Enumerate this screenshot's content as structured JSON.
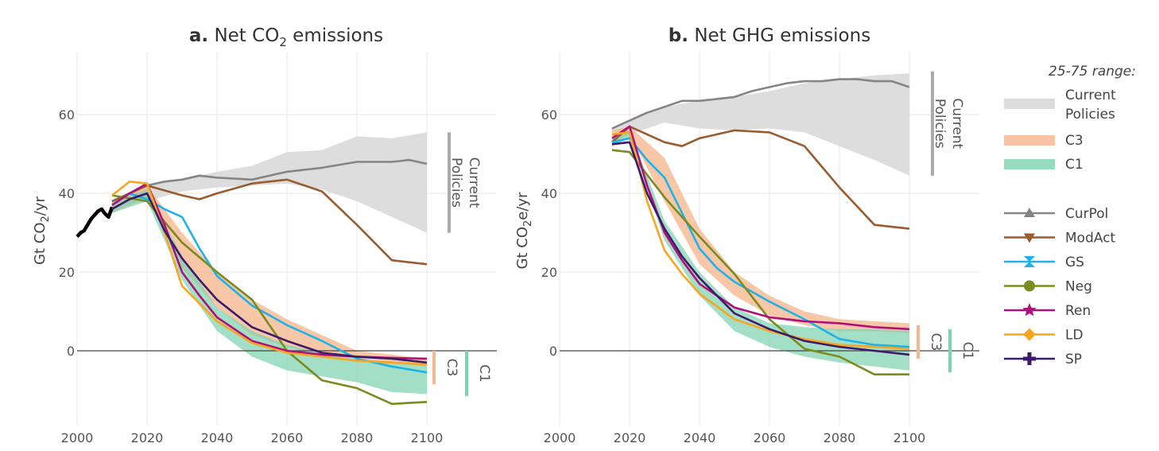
{
  "chart_data": [
    {
      "type": "line",
      "panel_letter": "a.",
      "title_pre": "Net CO",
      "title_sub": "2",
      "title_post": " emissions",
      "ylabel_pre": "Gt CO",
      "ylabel_sub": "2",
      "ylabel_post": "/yr",
      "xlim": [
        2000,
        2120
      ],
      "ylim": [
        -19,
        76
      ],
      "xticks": [
        2000,
        2020,
        2040,
        2060,
        2080,
        2100
      ],
      "yticks": [
        0,
        20,
        40,
        60
      ],
      "historical": {
        "x": [
          2000,
          2001,
          2002,
          2003,
          2004,
          2005,
          2006,
          2007,
          2008,
          2009,
          2010
        ],
        "y": [
          29,
          30,
          30.5,
          32,
          33.5,
          34.5,
          35.5,
          36,
          34.8,
          34,
          36.5
        ]
      },
      "ranges": [
        {
          "name": "Current Policies",
          "x": [
            2010,
            2020,
            2030,
            2040,
            2050,
            2060,
            2070,
            2080,
            2090,
            2100
          ],
          "low": [
            37,
            38,
            40.5,
            41.5,
            42,
            42.5,
            41,
            38,
            34,
            30
          ],
          "high": [
            37.5,
            42,
            43.5,
            45.5,
            47,
            50.5,
            51,
            54.5,
            54,
            55.5
          ]
        },
        {
          "name": "C3",
          "x": [
            2010,
            2020,
            2030,
            2040,
            2050,
            2060,
            2070,
            2080,
            2090,
            2100
          ],
          "low": [
            35,
            39,
            21,
            11,
            4,
            1,
            -1,
            -2,
            -3,
            -4
          ],
          "high": [
            38,
            42,
            30,
            20,
            13,
            8,
            4,
            0,
            -1,
            -2
          ]
        },
        {
          "name": "C1",
          "x": [
            2010,
            2020,
            2030,
            2040,
            2050,
            2060,
            2070,
            2080,
            2090,
            2100
          ],
          "low": [
            35,
            38,
            18,
            5,
            -1.5,
            -5,
            -6.5,
            -8,
            -10.5,
            -11
          ],
          "high": [
            38,
            41,
            24,
            11,
            5,
            1.5,
            -0.5,
            -2,
            -3,
            -3.5
          ]
        }
      ],
      "series": [
        {
          "name": "CurPol",
          "x": [
            2010,
            2020,
            2025,
            2030,
            2035,
            2040,
            2050,
            2060,
            2070,
            2080,
            2090,
            2095,
            2100
          ],
          "y": [
            38,
            42,
            43,
            43.5,
            44.5,
            44,
            43.5,
            45.5,
            46.5,
            48,
            48,
            48.5,
            47.5
          ]
        },
        {
          "name": "ModAct",
          "x": [
            2010,
            2020,
            2030,
            2035,
            2040,
            2050,
            2060,
            2070,
            2080,
            2090,
            2100
          ],
          "y": [
            38,
            42,
            39.5,
            38.5,
            40,
            42.5,
            43.5,
            40.5,
            32,
            23,
            22
          ]
        },
        {
          "name": "GS",
          "x": [
            2010,
            2015,
            2020,
            2025,
            2030,
            2035,
            2040,
            2050,
            2060,
            2070,
            2080,
            2090,
            2100
          ],
          "y": [
            37,
            40,
            38.5,
            36,
            34,
            26,
            19,
            11.5,
            6.5,
            2.5,
            -2,
            -4,
            -5.5
          ]
        },
        {
          "name": "Neg",
          "x": [
            2010,
            2020,
            2030,
            2040,
            2050,
            2060,
            2070,
            2080,
            2090,
            2100
          ],
          "y": [
            39.5,
            38,
            27.5,
            20,
            13,
            0,
            -7.5,
            -9.5,
            -13.5,
            -13
          ]
        },
        {
          "name": "Ren",
          "x": [
            2010,
            2015,
            2020,
            2025,
            2030,
            2035,
            2040,
            2050,
            2060,
            2070,
            2080,
            2090,
            2100
          ],
          "y": [
            37,
            40,
            42.5,
            32,
            20,
            14,
            8.5,
            2.5,
            0,
            -1,
            -1.5,
            -1.8,
            -2
          ]
        },
        {
          "name": "LD",
          "x": [
            2010,
            2015,
            2020,
            2025,
            2030,
            2035,
            2040,
            2050,
            2060,
            2070,
            2080,
            2090,
            2100
          ],
          "y": [
            39.5,
            43,
            42.5,
            30,
            16.5,
            12,
            7.5,
            2,
            -0.5,
            -1.5,
            -2.5,
            -3,
            -3.5
          ]
        },
        {
          "name": "SP",
          "x": [
            2010,
            2015,
            2020,
            2025,
            2030,
            2035,
            2040,
            2050,
            2060,
            2070,
            2080,
            2090,
            2100
          ],
          "y": [
            36,
            38.5,
            40,
            30.5,
            23.5,
            18,
            13,
            6,
            2.5,
            -0.5,
            -1.5,
            -2,
            -3
          ]
        }
      ],
      "brackets": [
        {
          "label": "Current Policies",
          "range": [
            30,
            55.5
          ],
          "color": "#aaaaaa"
        },
        {
          "label": "C3",
          "range": [
            -8.5,
            0
          ],
          "color": "#f4b88f"
        },
        {
          "label": "C1",
          "range": [
            -11.5,
            0
          ],
          "color": "#7fd2b0"
        }
      ]
    },
    {
      "type": "line",
      "panel_letter": "b.",
      "title_pre": "Net GHG emissions",
      "title_sub": "",
      "title_post": "",
      "ylabel_pre": "Gt CO",
      "ylabel_sub": "2",
      "ylabel_post": "e/yr",
      "xlim": [
        2000,
        2120
      ],
      "ylim": [
        -19,
        76
      ],
      "xticks": [
        2000,
        2020,
        2040,
        2060,
        2080,
        2100
      ],
      "yticks": [
        0,
        20,
        40,
        60
      ],
      "ranges": [
        {
          "name": "Current Policies",
          "x": [
            2015,
            2020,
            2030,
            2040,
            2050,
            2060,
            2070,
            2080,
            2090,
            2100
          ],
          "low": [
            56,
            55,
            58,
            56.5,
            56,
            56.5,
            55.5,
            52,
            48.5,
            44.5
          ],
          "high": [
            56.5,
            58.5,
            62,
            63.5,
            64.5,
            66,
            68,
            69,
            70,
            70.5
          ]
        },
        {
          "name": "C3",
          "x": [
            2015,
            2020,
            2030,
            2040,
            2050,
            2060,
            2070,
            2080,
            2090,
            2100
          ],
          "low": [
            53,
            55,
            38,
            22,
            14,
            9,
            6.5,
            5,
            5,
            4.5
          ],
          "high": [
            56,
            57,
            49,
            31,
            20,
            14,
            10,
            8,
            7.5,
            7
          ]
        },
        {
          "name": "C1",
          "x": [
            2015,
            2020,
            2030,
            2040,
            2050,
            2060,
            2070,
            2080,
            2090,
            2100
          ],
          "low": [
            52,
            54,
            28,
            14,
            5,
            1,
            -1.5,
            -3,
            -4,
            -5
          ],
          "high": [
            54,
            56,
            33,
            20,
            11,
            7,
            6,
            5.5,
            5.5,
            5
          ]
        }
      ],
      "series": [
        {
          "name": "CurPol",
          "x": [
            2015,
            2020,
            2025,
            2030,
            2035,
            2040,
            2045,
            2050,
            2055,
            2060,
            2065,
            2070,
            2075,
            2080,
            2085,
            2090,
            2095,
            2100
          ],
          "y": [
            56.5,
            58.5,
            60.5,
            62,
            63.5,
            63.5,
            64,
            64.5,
            66,
            67,
            68,
            68.5,
            68.5,
            69,
            69,
            68.5,
            68.5,
            67
          ]
        },
        {
          "name": "ModAct",
          "x": [
            2015,
            2020,
            2025,
            2030,
            2035,
            2040,
            2045,
            2050,
            2060,
            2070,
            2080,
            2090,
            2100
          ],
          "y": [
            53,
            57,
            55,
            53,
            52,
            54,
            55,
            56,
            55.5,
            52,
            41.5,
            32,
            31
          ]
        },
        {
          "name": "GS",
          "x": [
            2015,
            2020,
            2025,
            2030,
            2035,
            2040,
            2045,
            2050,
            2060,
            2070,
            2080,
            2090,
            2100
          ],
          "y": [
            53,
            54,
            48.5,
            44,
            35,
            26,
            21,
            17.5,
            12.5,
            8,
            3,
            1.5,
            1
          ]
        },
        {
          "name": "Neg",
          "x": [
            2015,
            2020,
            2030,
            2040,
            2050,
            2060,
            2070,
            2080,
            2090,
            2100
          ],
          "y": [
            51,
            50.5,
            39,
            29,
            19.5,
            8,
            0.5,
            -1.5,
            -6,
            -6
          ]
        },
        {
          "name": "Ren",
          "x": [
            2015,
            2020,
            2025,
            2030,
            2035,
            2040,
            2050,
            2060,
            2070,
            2080,
            2090,
            2100
          ],
          "y": [
            54,
            57,
            42,
            30,
            23,
            17,
            11,
            8.5,
            7.5,
            7,
            6,
            5.5
          ]
        },
        {
          "name": "LD",
          "x": [
            2015,
            2020,
            2025,
            2030,
            2035,
            2040,
            2050,
            2060,
            2070,
            2080,
            2090,
            2100
          ],
          "y": [
            55,
            55.5,
            38,
            25.5,
            19.5,
            14.5,
            8,
            5,
            3,
            1.5,
            1,
            0.5
          ]
        },
        {
          "name": "SP",
          "x": [
            2015,
            2020,
            2025,
            2030,
            2035,
            2040,
            2050,
            2060,
            2070,
            2080,
            2090,
            2100
          ],
          "y": [
            52.5,
            53,
            40,
            31,
            24,
            18.5,
            9.5,
            5.5,
            2.5,
            1,
            0,
            -1
          ]
        }
      ],
      "brackets": [
        {
          "label": "Current Policies",
          "range": [
            44.5,
            71
          ],
          "color": "#aaaaaa"
        },
        {
          "label": "C3",
          "range": [
            -2,
            6.5
          ],
          "color": "#f4b88f"
        },
        {
          "label": "C1",
          "range": [
            -5.5,
            5.5
          ],
          "color": "#7fd2b0"
        }
      ]
    }
  ],
  "legend": {
    "title": "25-75 range:",
    "ranges": [
      {
        "label_lines": [
          "Current",
          "Policies"
        ],
        "color": "#dcdcdc"
      },
      {
        "label_lines": [
          "C3"
        ],
        "color": "#f7c3a2"
      },
      {
        "label_lines": [
          "C1"
        ],
        "color": "#96dcc0"
      }
    ],
    "series": [
      {
        "name": "CurPol",
        "color": "#858585",
        "marker": "triangle-up"
      },
      {
        "name": "ModAct",
        "color": "#9a5b2e",
        "marker": "triangle-down"
      },
      {
        "name": "GS",
        "color": "#1fb2e8",
        "marker": "x-bowtie"
      },
      {
        "name": "Neg",
        "color": "#7a8c1f",
        "marker": "circle"
      },
      {
        "name": "Ren",
        "color": "#b0107a",
        "marker": "star"
      },
      {
        "name": "LD",
        "color": "#f6a623",
        "marker": "diamond"
      },
      {
        "name": "SP",
        "color": "#3e1a6b",
        "marker": "cross"
      }
    ]
  }
}
